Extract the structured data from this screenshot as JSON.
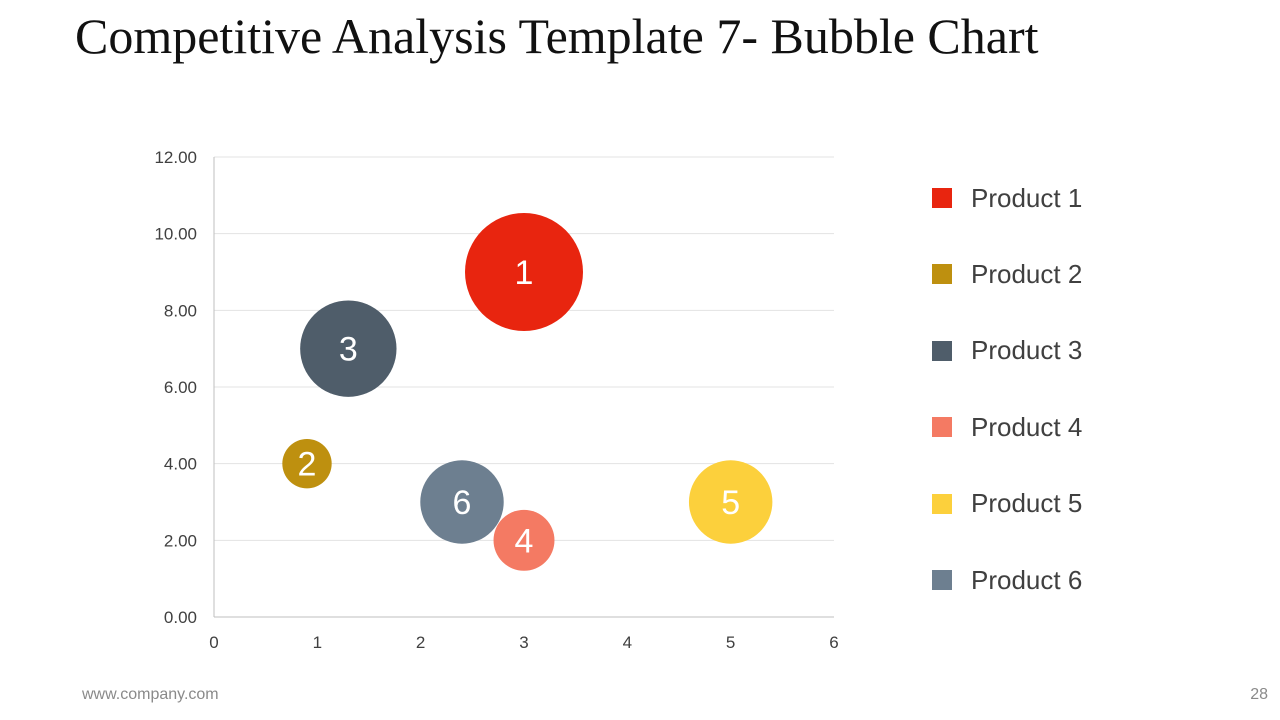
{
  "title": "Competitive Analysis Template 7- Bubble Chart",
  "footer": {
    "url": "www.company.com",
    "page_number": "28"
  },
  "chart_data": {
    "type": "bubble",
    "title": "",
    "xlabel": "",
    "ylabel": "",
    "xlim": [
      0,
      6
    ],
    "ylim": [
      0,
      12
    ],
    "x_ticks": [
      "0",
      "1",
      "2",
      "3",
      "4",
      "5",
      "6"
    ],
    "y_ticks": [
      "0.00",
      "2.00",
      "4.00",
      "6.00",
      "8.00",
      "10.00",
      "12.00"
    ],
    "grid": "horizontal",
    "legend_position": "right",
    "series": [
      {
        "name": "Product 1",
        "label": "1",
        "x": 3.0,
        "y": 9.0,
        "size": 12,
        "color": "#E8250F"
      },
      {
        "name": "Product 2",
        "label": "2",
        "x": 0.9,
        "y": 4.0,
        "size": 2.1,
        "color": "#BE900F"
      },
      {
        "name": "Product 3",
        "label": "3",
        "x": 1.3,
        "y": 7.0,
        "size": 8,
        "color": "#4F5D6A"
      },
      {
        "name": "Product 4",
        "label": "4",
        "x": 3.0,
        "y": 2.0,
        "size": 3.2,
        "color": "#F47A63"
      },
      {
        "name": "Product 5",
        "label": "5",
        "x": 5.0,
        "y": 3.0,
        "size": 6,
        "color": "#FCD03C"
      },
      {
        "name": "Product 6",
        "label": "6",
        "x": 2.4,
        "y": 3.0,
        "size": 6,
        "color": "#6D7F90"
      }
    ]
  }
}
